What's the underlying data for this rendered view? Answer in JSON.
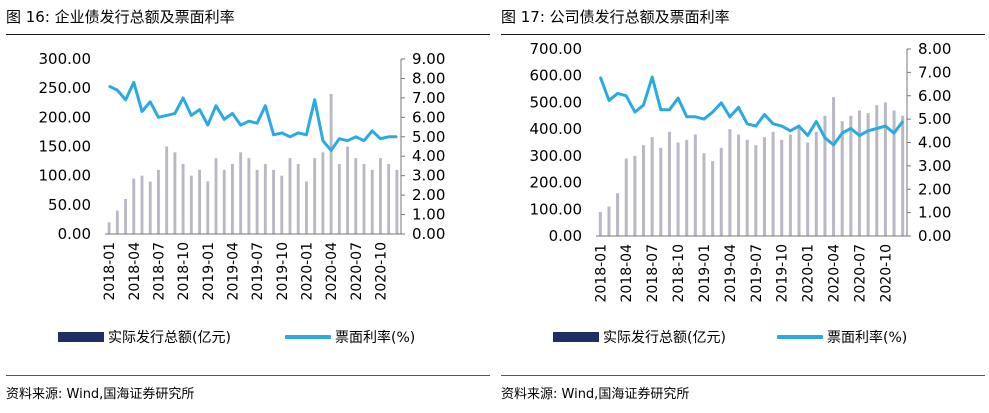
{
  "colors": {
    "bar": "#b9b9c6",
    "line": "#2aaae5",
    "legend_bar": "#1f2f63"
  },
  "charts": [
    {
      "id": "left",
      "title": "图 16:  企业债发行总额及票面利率",
      "source": "资料来源:  Wind,国海证券研究所",
      "legend_bar": "实际发行总额(亿元)",
      "legend_line": "票面利率(%)",
      "left_ticks": [
        "0.00",
        "50.00",
        "100.00",
        "150.00",
        "200.00",
        "250.00",
        "300.00"
      ],
      "right_ticks": [
        "0.00",
        "1.00",
        "2.00",
        "3.00",
        "4.00",
        "5.00",
        "6.00",
        "7.00",
        "8.00",
        "9.00"
      ],
      "x_ticks": [
        "2018-01",
        "2018-04",
        "2018-07",
        "2018-10",
        "2019-01",
        "2019-04",
        "2019-07",
        "2019-10",
        "2020-01",
        "2020-04",
        "2020-07",
        "2020-10"
      ]
    },
    {
      "id": "right",
      "title": "图 17:  公司债发行总额及票面利率",
      "source": "资料来源:  Wind,国海证券研究所",
      "legend_bar": "实际发行总额(亿元)",
      "legend_line": "票面利率(%)",
      "left_ticks": [
        "0.00",
        "100.00",
        "200.00",
        "300.00",
        "400.00",
        "500.00",
        "600.00",
        "700.00"
      ],
      "right_ticks": [
        "0.00",
        "1.00",
        "2.00",
        "3.00",
        "4.00",
        "5.00",
        "6.00",
        "7.00",
        "8.00"
      ],
      "x_ticks": [
        "2018-01",
        "2018-04",
        "2018-07",
        "2018-10",
        "2019-01",
        "2019-04",
        "2019-07",
        "2019-10",
        "2020-01",
        "2020-04",
        "2020-07",
        "2020-10"
      ]
    }
  ],
  "chart_data": [
    {
      "type": "bar+line",
      "title": "图 16:  企业债发行总额及票面利率",
      "ylim": [
        0,
        300
      ],
      "y2lim": [
        0,
        9
      ],
      "categories": [
        "2018-01",
        "2018-02",
        "2018-03",
        "2018-04",
        "2018-05",
        "2018-06",
        "2018-07",
        "2018-08",
        "2018-09",
        "2018-10",
        "2018-11",
        "2018-12",
        "2019-01",
        "2019-02",
        "2019-03",
        "2019-04",
        "2019-05",
        "2019-06",
        "2019-07",
        "2019-08",
        "2019-09",
        "2019-10",
        "2019-11",
        "2019-12",
        "2020-01",
        "2020-02",
        "2020-03",
        "2020-04",
        "2020-05",
        "2020-06",
        "2020-07",
        "2020-08",
        "2020-09",
        "2020-10",
        "2020-11",
        "2020-12"
      ],
      "series": [
        {
          "name": "实际发行总额(亿元)",
          "axis": "left",
          "kind": "bar",
          "values": [
            20,
            40,
            60,
            95,
            100,
            90,
            110,
            150,
            140,
            120,
            100,
            110,
            90,
            130,
            110,
            120,
            140,
            130,
            110,
            120,
            110,
            100,
            130,
            120,
            90,
            130,
            140,
            240,
            120,
            150,
            130,
            120,
            110,
            130,
            120,
            110
          ]
        },
        {
          "name": "票面利率(%)",
          "axis": "right",
          "kind": "line",
          "values": [
            7.6,
            7.4,
            6.9,
            7.8,
            6.3,
            6.8,
            6.0,
            6.1,
            6.2,
            7.0,
            6.1,
            6.4,
            5.6,
            6.6,
            5.9,
            6.2,
            5.6,
            5.8,
            5.7,
            6.6,
            5.1,
            5.2,
            5.0,
            5.2,
            5.1,
            6.9,
            4.8,
            4.3,
            4.9,
            4.8,
            5.0,
            4.8,
            5.3,
            4.9,
            5.0,
            5.0
          ]
        }
      ]
    },
    {
      "type": "bar+line",
      "title": "图 17:  公司债发行总额及票面利率",
      "ylim": [
        0,
        700
      ],
      "y2lim": [
        0,
        8
      ],
      "categories": [
        "2018-01",
        "2018-02",
        "2018-03",
        "2018-04",
        "2018-05",
        "2018-06",
        "2018-07",
        "2018-08",
        "2018-09",
        "2018-10",
        "2018-11",
        "2018-12",
        "2019-01",
        "2019-02",
        "2019-03",
        "2019-04",
        "2019-05",
        "2019-06",
        "2019-07",
        "2019-08",
        "2019-09",
        "2019-10",
        "2019-11",
        "2019-12",
        "2020-01",
        "2020-02",
        "2020-03",
        "2020-04",
        "2020-05",
        "2020-06",
        "2020-07",
        "2020-08",
        "2020-09",
        "2020-10",
        "2020-11",
        "2020-12"
      ],
      "series": [
        {
          "name": "实际发行总额(亿元)",
          "axis": "left",
          "kind": "bar",
          "values": [
            90,
            110,
            160,
            290,
            300,
            340,
            370,
            330,
            390,
            350,
            360,
            380,
            310,
            280,
            330,
            400,
            380,
            360,
            340,
            370,
            390,
            360,
            380,
            410,
            350,
            390,
            450,
            520,
            430,
            450,
            470,
            460,
            490,
            500,
            470,
            450
          ]
        },
        {
          "name": "票面利率(%)",
          "axis": "right",
          "kind": "line",
          "values": [
            6.8,
            5.8,
            6.1,
            6.0,
            5.3,
            5.6,
            6.8,
            5.4,
            5.4,
            5.9,
            5.1,
            5.1,
            5.0,
            5.3,
            5.7,
            5.1,
            5.5,
            4.8,
            4.7,
            5.2,
            4.8,
            4.7,
            4.5,
            4.7,
            4.3,
            4.9,
            4.2,
            3.9,
            4.4,
            4.6,
            4.3,
            4.5,
            4.6,
            4.7,
            4.4,
            4.9
          ]
        }
      ]
    }
  ]
}
